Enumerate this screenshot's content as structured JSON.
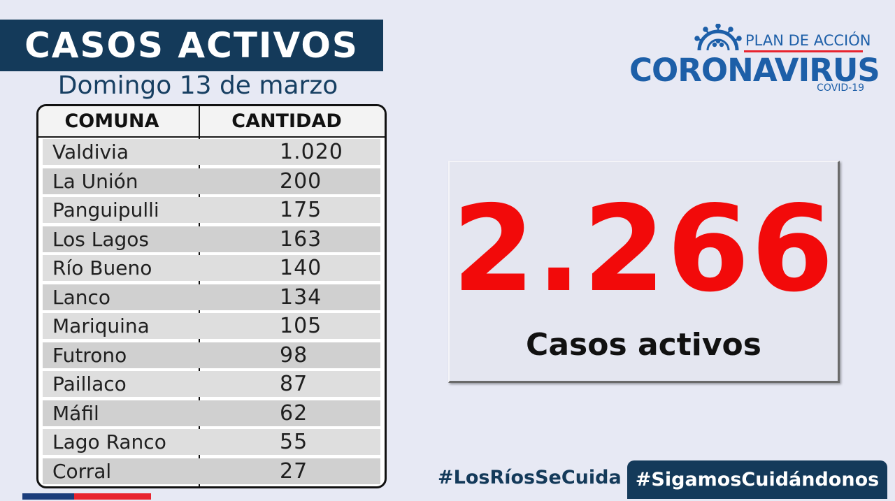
{
  "header": {
    "title": "CASOS ACTIVOS",
    "subtitle": "Domingo 13 de marzo"
  },
  "table": {
    "columns": [
      "COMUNA",
      "CANTIDAD"
    ],
    "rows": [
      {
        "comuna": "Valdivia",
        "cantidad": "1.020"
      },
      {
        "comuna": "La Unión",
        "cantidad": "200"
      },
      {
        "comuna": "Panguipulli",
        "cantidad": "175"
      },
      {
        "comuna": "Los Lagos",
        "cantidad": "163"
      },
      {
        "comuna": "Río Bueno",
        "cantidad": "140"
      },
      {
        "comuna": "Lanco",
        "cantidad": "134"
      },
      {
        "comuna": "Mariquina",
        "cantidad": "105"
      },
      {
        "comuna": "Futrono",
        "cantidad": "98"
      },
      {
        "comuna": "Paillaco",
        "cantidad": "87"
      },
      {
        "comuna": "Máfil",
        "cantidad": "62"
      },
      {
        "comuna": "Lago Ranco",
        "cantidad": "55"
      },
      {
        "comuna": "Corral",
        "cantidad": "27"
      }
    ]
  },
  "total": {
    "value": "2.266",
    "caption": "Casos activos"
  },
  "logo": {
    "plan": "PLAN DE ACCIÓN",
    "main": "CORONAVIRUS",
    "sub": "COVID-19",
    "icon": "virus-icon"
  },
  "hashtags": {
    "regional": "#LosRíosSeCuida",
    "campaign": "#SigamosCuidándonos"
  },
  "colors": {
    "navy": "#143a5a",
    "brand_blue": "#1d5fa8",
    "alert_red": "#f20a0a",
    "flag_red": "#e8242f",
    "background": "#e7e9f4"
  }
}
